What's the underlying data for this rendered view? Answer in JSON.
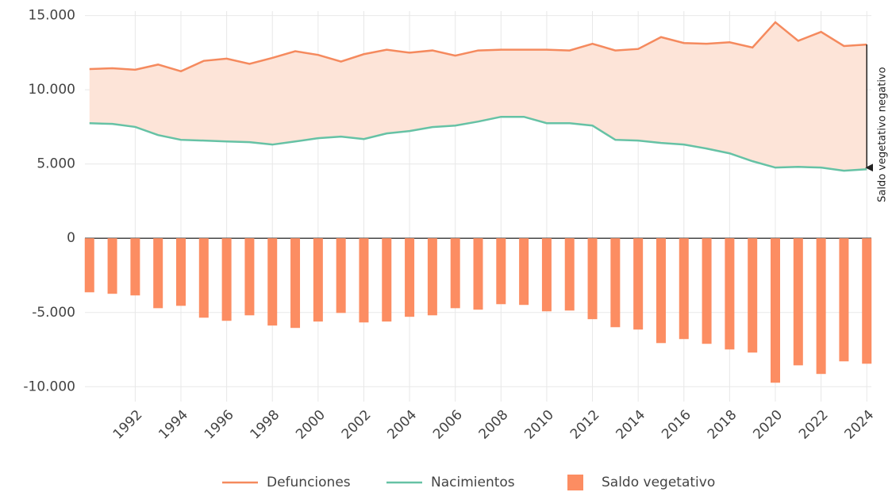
{
  "chart_data": {
    "type": "line",
    "x": [
      1990,
      1991,
      1992,
      1993,
      1994,
      1995,
      1996,
      1997,
      1998,
      1999,
      2000,
      2001,
      2002,
      2003,
      2004,
      2005,
      2006,
      2007,
      2008,
      2009,
      2010,
      2011,
      2012,
      2013,
      2014,
      2015,
      2016,
      2017,
      2018,
      2019,
      2020,
      2021,
      2022,
      2023,
      2024
    ],
    "series": [
      {
        "name": "Defunciones",
        "type": "line",
        "color": "#f58a5e",
        "values": [
          11400,
          11450,
          11350,
          11700,
          11250,
          11950,
          12100,
          11750,
          12150,
          12600,
          12350,
          11900,
          12400,
          12700,
          12500,
          12650,
          12300,
          12650,
          12700,
          12700,
          12700,
          12650,
          13100,
          12650,
          12750,
          13550,
          13150,
          13100,
          13200,
          12850,
          14550,
          13300,
          13900,
          12950,
          13050
        ]
      },
      {
        "name": "Nacimientos",
        "type": "line",
        "color": "#66c2a5",
        "values": [
          7750,
          7700,
          7500,
          6950,
          6630,
          6580,
          6520,
          6470,
          6310,
          6520,
          6740,
          6850,
          6680,
          7060,
          7220,
          7490,
          7590,
          7860,
          8180,
          8180,
          7750,
          7750,
          7590,
          6630,
          6580,
          6420,
          6310,
          6040,
          5720,
          5190,
          4760,
          4810,
          4760,
          4550,
          4650
        ]
      },
      {
        "name": "Saldo vegetativo",
        "type": "bar",
        "color": "#fc8d62",
        "values": [
          -3640,
          -3740,
          -3850,
          -4710,
          -4550,
          -5350,
          -5560,
          -5190,
          -5880,
          -6040,
          -5610,
          -5030,
          -5670,
          -5610,
          -5290,
          -5190,
          -4710,
          -4810,
          -4440,
          -4490,
          -4920,
          -4870,
          -5450,
          -5990,
          -6150,
          -7060,
          -6790,
          -7110,
          -7490,
          -7700,
          -9730,
          -8560,
          -9140,
          -8290,
          -8450
        ]
      }
    ],
    "fill_between_color": "#fde4d8",
    "annotation": "Saldo vegetativo negativo",
    "xlim": [
      1989.8,
      2024.2
    ],
    "xticks": [
      1992,
      1994,
      1996,
      1998,
      2000,
      2002,
      2004,
      2006,
      2008,
      2010,
      2012,
      2014,
      2016,
      2018,
      2020,
      2022,
      2024
    ],
    "ylim": [
      -11000,
      15300
    ],
    "yticks": [
      {
        "value": -10000,
        "label": "-10.000"
      },
      {
        "value": -5000,
        "label": "-5.000"
      },
      0,
      {
        "value": 5000,
        "label": "5.000"
      },
      {
        "value": 10000,
        "label": "10.000"
      },
      {
        "value": 15000,
        "label": "15.000"
      }
    ],
    "grid": true
  }
}
